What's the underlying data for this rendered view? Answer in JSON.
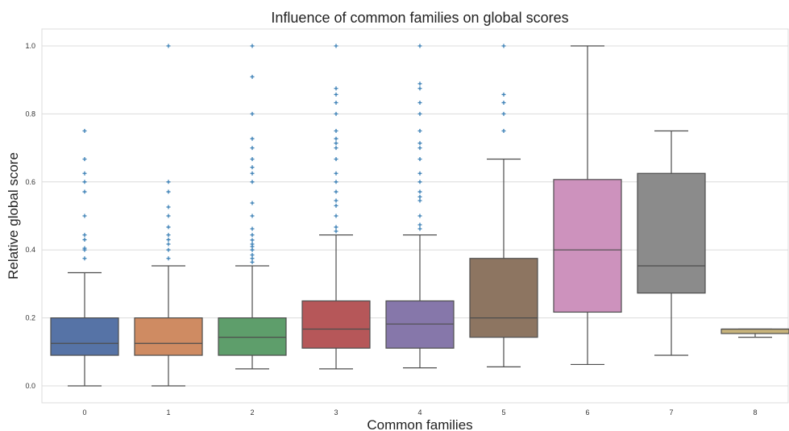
{
  "chart_data": {
    "type": "box",
    "title": "Influence of common families on global scores",
    "xlabel": "Common families",
    "ylabel": "Relative global score",
    "ylim": [
      -0.05,
      1.05
    ],
    "yticks": [
      "0.0",
      "0.2",
      "0.4",
      "0.6",
      "0.8",
      "1.0"
    ],
    "grid": true,
    "categories": [
      "0",
      "1",
      "2",
      "3",
      "4",
      "5",
      "6",
      "7",
      "8"
    ],
    "boxes": [
      {
        "category": "0",
        "whisker_low": 0.0,
        "q1": 0.09,
        "median": 0.125,
        "q3": 0.2,
        "whisker_high": 0.333,
        "color": "#5673a6",
        "outliers": [
          0.375,
          0.4,
          0.405,
          0.43,
          0.444,
          0.5,
          0.571,
          0.6,
          0.625,
          0.667,
          0.75
        ]
      },
      {
        "category": "1",
        "whisker_low": 0.0,
        "q1": 0.09,
        "median": 0.125,
        "q3": 0.2,
        "whisker_high": 0.353,
        "color": "#cf8b62",
        "outliers": [
          0.375,
          0.4,
          0.417,
          0.43,
          0.444,
          0.467,
          0.5,
          0.526,
          0.571,
          0.6,
          1.0
        ]
      },
      {
        "category": "2",
        "whisker_low": 0.05,
        "q1": 0.09,
        "median": 0.143,
        "q3": 0.2,
        "whisker_high": 0.353,
        "color": "#5e9e6b",
        "outliers": [
          0.364,
          0.375,
          0.385,
          0.4,
          0.41,
          0.417,
          0.429,
          0.444,
          0.462,
          0.5,
          0.538,
          0.6,
          0.625,
          0.643,
          0.667,
          0.7,
          0.727,
          0.8,
          0.909,
          1.0
        ]
      },
      {
        "category": "3",
        "whisker_low": 0.05,
        "q1": 0.111,
        "median": 0.167,
        "q3": 0.25,
        "whisker_high": 0.444,
        "color": "#b65759",
        "outliers": [
          0.455,
          0.467,
          0.5,
          0.53,
          0.545,
          0.571,
          0.6,
          0.625,
          0.667,
          0.7,
          0.714,
          0.727,
          0.75,
          0.8,
          0.833,
          0.857,
          0.875,
          1.0
        ]
      },
      {
        "category": "4",
        "whisker_low": 0.053,
        "q1": 0.111,
        "median": 0.182,
        "q3": 0.25,
        "whisker_high": 0.444,
        "color": "#8677aa",
        "outliers": [
          0.462,
          0.474,
          0.5,
          0.545,
          0.556,
          0.571,
          0.6,
          0.625,
          0.667,
          0.7,
          0.714,
          0.75,
          0.8,
          0.833,
          0.875,
          0.889,
          1.0
        ]
      },
      {
        "category": "5",
        "whisker_low": 0.056,
        "q1": 0.143,
        "median": 0.2,
        "q3": 0.375,
        "whisker_high": 0.667,
        "color": "#8d7561",
        "outliers": [
          0.75,
          0.8,
          0.833,
          0.857,
          1.0
        ]
      },
      {
        "category": "6",
        "whisker_low": 0.063,
        "q1": 0.217,
        "median": 0.4,
        "q3": 0.607,
        "whisker_high": 1.0,
        "color": "#cd92bd",
        "outliers": []
      },
      {
        "category": "7",
        "whisker_low": 0.09,
        "q1": 0.273,
        "median": 0.353,
        "q3": 0.625,
        "whisker_high": 0.75,
        "color": "#8b8b8b",
        "outliers": []
      },
      {
        "category": "8",
        "whisker_low": 0.143,
        "q1": 0.154,
        "median": 0.167,
        "q3": 0.167,
        "whisker_high": 0.167,
        "color": "#c8b47c",
        "outliers": []
      }
    ],
    "outlier_color": "#3a7fb5",
    "box_edge_color": "#4d4d4d",
    "grid_color": "#dcdcdc"
  }
}
